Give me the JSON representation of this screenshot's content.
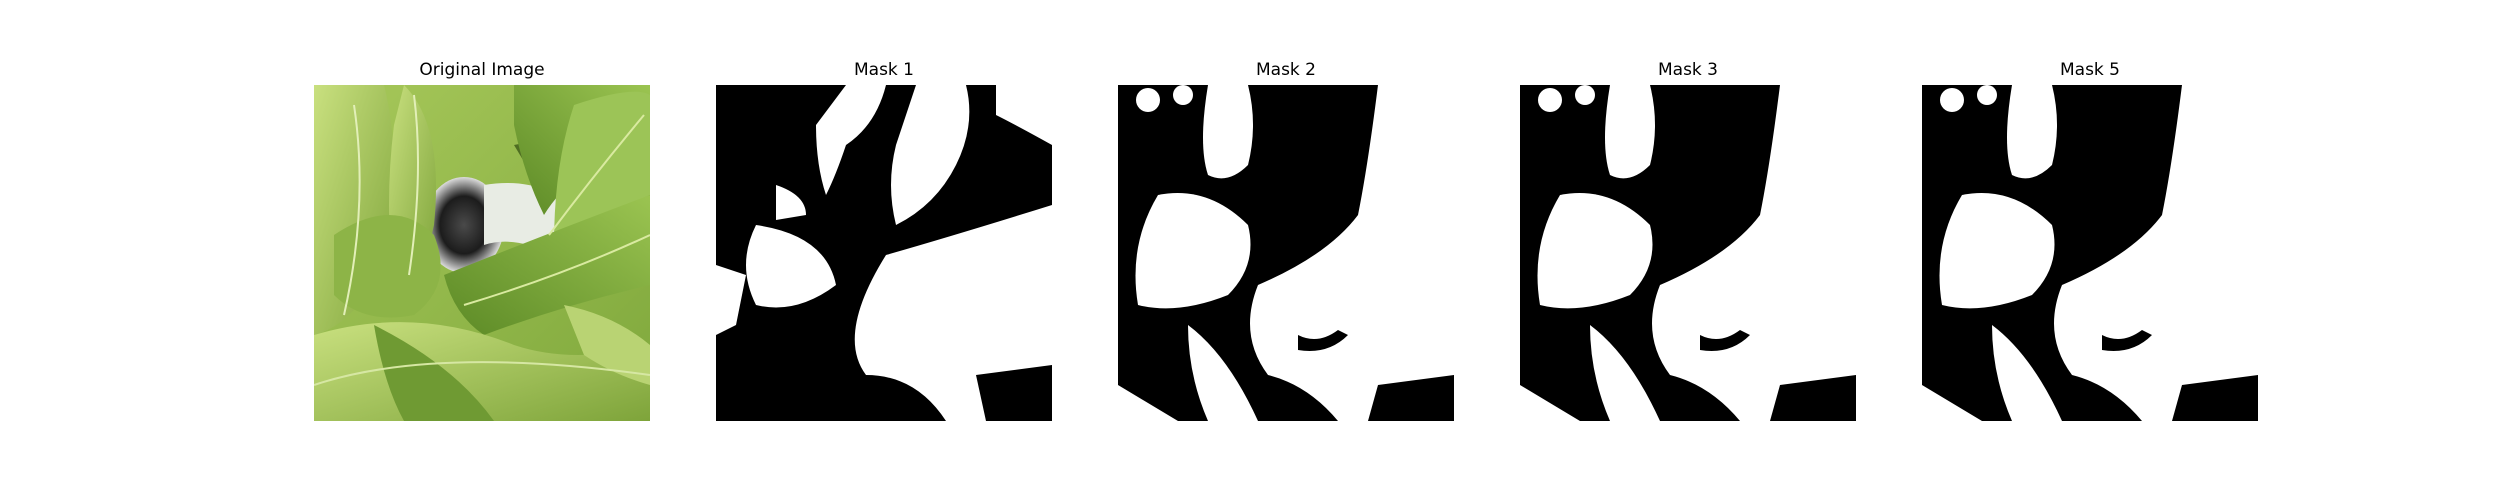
{
  "figure": {
    "panels": [
      {
        "title": "Original Image",
        "kind": "photo",
        "subject": "leafy-green-plant-photo"
      },
      {
        "title": "Mask 1",
        "kind": "mask"
      },
      {
        "title": "Mask 2",
        "kind": "mask"
      },
      {
        "title": "Mask 3",
        "kind": "mask"
      },
      {
        "title": "Mask 5",
        "kind": "mask"
      }
    ]
  },
  "colors": {
    "background": "#ffffff",
    "mask_foreground": "#ffffff",
    "mask_background": "#000000",
    "leaf_light": "#b6d46a",
    "leaf_mid": "#8fb64a",
    "leaf_dark": "#5f8a2c",
    "shadow": "#1b2410"
  }
}
